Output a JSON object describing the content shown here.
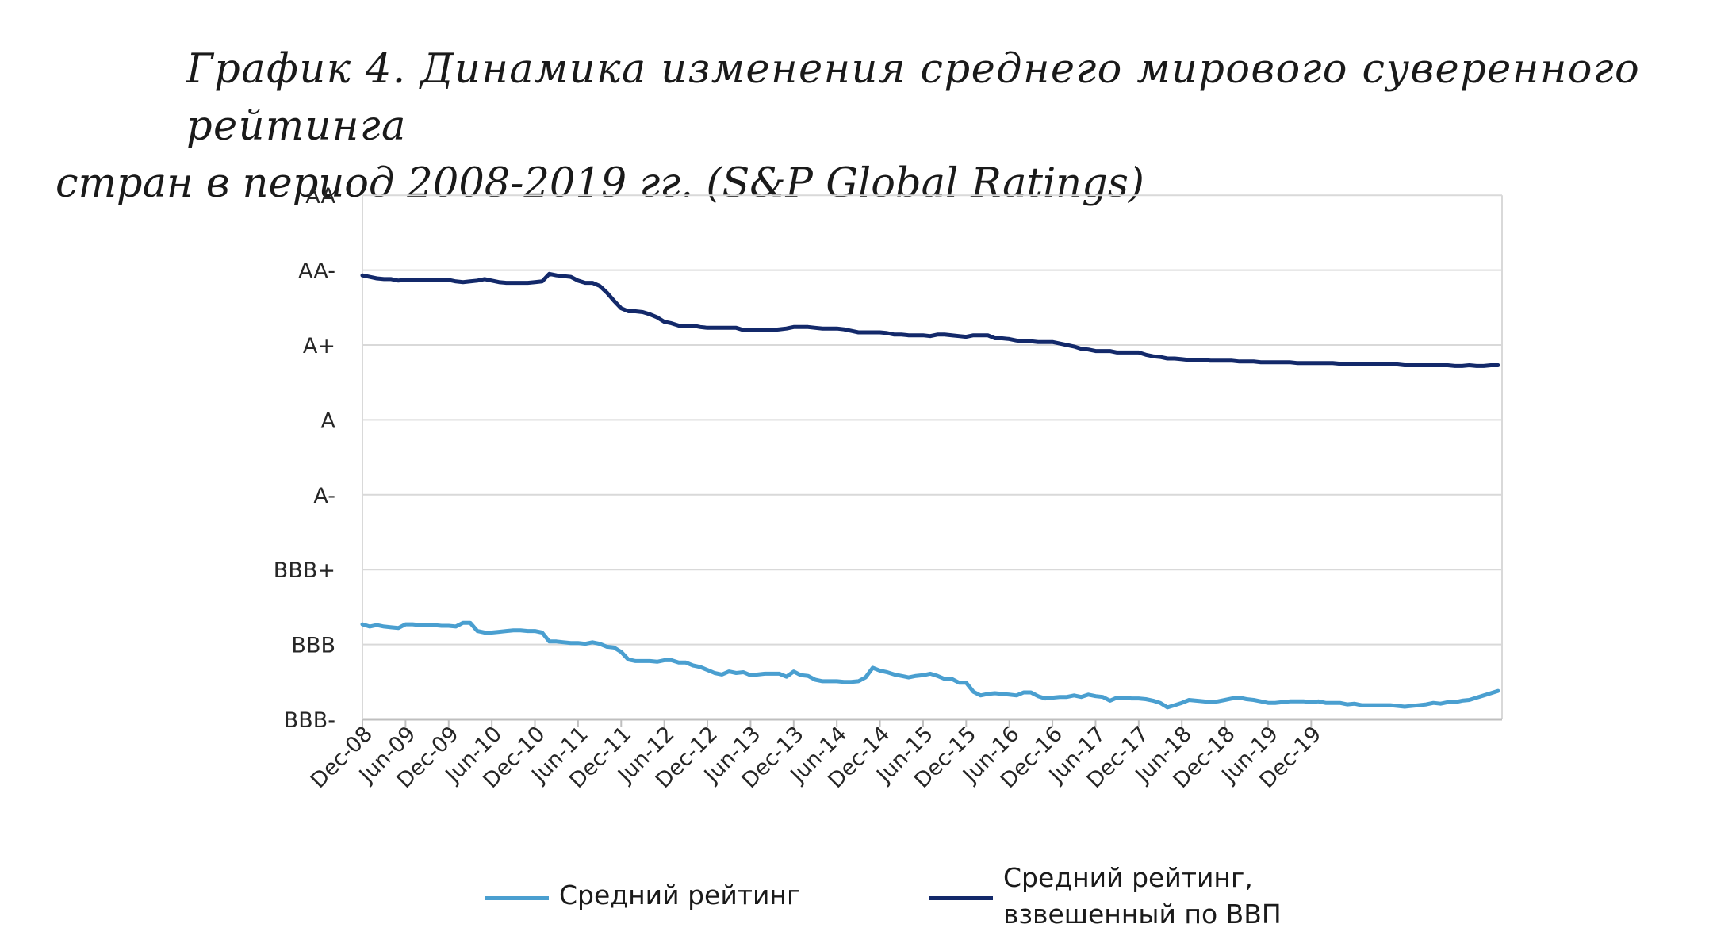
{
  "title": {
    "line1": "График 4. Динамика изменения среднего мирового суверенного рейтинга",
    "line2": "стран в период 2008-2019 гг. (S&P Global Ratings)"
  },
  "colors": {
    "avg": "#4a9fd0",
    "weighted": "#13296a",
    "grid": "#d9d9d9",
    "axis": "#bfbfbf"
  },
  "chart_data": {
    "type": "line",
    "title": "",
    "xlabel": "",
    "ylabel": "",
    "grid": true,
    "legend_position": "bottom",
    "y_ticks": [
      "BBB-",
      "BBB",
      "BBB+",
      "A-",
      "A",
      "A+",
      "AA-",
      "AA"
    ],
    "ylim": [
      0,
      7
    ],
    "x_tick_labels": [
      "Dec-08",
      "Jun-09",
      "Dec-09",
      "Jun-10",
      "Dec-10",
      "Jun-11",
      "Dec-11",
      "Jun-12",
      "Dec-12",
      "Jun-13",
      "Dec-13",
      "Jun-14",
      "Dec-14",
      "Jun-15",
      "Dec-15",
      "Jun-16",
      "Dec-16",
      "Jun-17",
      "Dec-17",
      "Jun-18",
      "Dec-18",
      "Jun-19",
      "Dec-19"
    ],
    "x_unit": "month index from Dec-08",
    "series": [
      {
        "name": "Средний рейтинг",
        "color_key": "avg",
        "points": [
          [
            0,
            1.27
          ],
          [
            1,
            1.24
          ],
          [
            2,
            1.26
          ],
          [
            3,
            1.24
          ],
          [
            4,
            1.23
          ],
          [
            5,
            1.22
          ],
          [
            6,
            1.27
          ],
          [
            7,
            1.27
          ],
          [
            8,
            1.26
          ],
          [
            9,
            1.26
          ],
          [
            10,
            1.26
          ],
          [
            11,
            1.25
          ],
          [
            12,
            1.25
          ],
          [
            13,
            1.24
          ],
          [
            14,
            1.29
          ],
          [
            15,
            1.29
          ],
          [
            16,
            1.18
          ],
          [
            17,
            1.16
          ],
          [
            18,
            1.16
          ],
          [
            19,
            1.17
          ],
          [
            20,
            1.18
          ],
          [
            21,
            1.19
          ],
          [
            22,
            1.19
          ],
          [
            23,
            1.18
          ],
          [
            24,
            1.18
          ],
          [
            25,
            1.16
          ],
          [
            26,
            1.04
          ],
          [
            27,
            1.04
          ],
          [
            28,
            1.03
          ],
          [
            29,
            1.02
          ],
          [
            30,
            1.02
          ],
          [
            31,
            1.01
          ],
          [
            32,
            1.03
          ],
          [
            33,
            1.01
          ],
          [
            34,
            0.97
          ],
          [
            35,
            0.96
          ],
          [
            36,
            0.9
          ],
          [
            37,
            0.8
          ],
          [
            38,
            0.78
          ],
          [
            39,
            0.78
          ],
          [
            40,
            0.78
          ],
          [
            41,
            0.77
          ],
          [
            42,
            0.79
          ],
          [
            43,
            0.79
          ],
          [
            44,
            0.76
          ],
          [
            45,
            0.76
          ],
          [
            46,
            0.72
          ],
          [
            47,
            0.7
          ],
          [
            48,
            0.66
          ],
          [
            49,
            0.62
          ],
          [
            50,
            0.6
          ],
          [
            51,
            0.64
          ],
          [
            52,
            0.62
          ],
          [
            53,
            0.63
          ],
          [
            54,
            0.59
          ],
          [
            55,
            0.6
          ],
          [
            56,
            0.61
          ],
          [
            57,
            0.61
          ],
          [
            58,
            0.61
          ],
          [
            59,
            0.57
          ],
          [
            60,
            0.64
          ],
          [
            61,
            0.59
          ],
          [
            62,
            0.58
          ],
          [
            63,
            0.53
          ],
          [
            64,
            0.51
          ],
          [
            65,
            0.51
          ],
          [
            66,
            0.51
          ],
          [
            67,
            0.5
          ],
          [
            68,
            0.5
          ],
          [
            69,
            0.51
          ],
          [
            70,
            0.56
          ],
          [
            71,
            0.69
          ],
          [
            72,
            0.65
          ],
          [
            73,
            0.63
          ],
          [
            74,
            0.6
          ],
          [
            75,
            0.58
          ],
          [
            76,
            0.56
          ],
          [
            77,
            0.58
          ],
          [
            78,
            0.59
          ],
          [
            79,
            0.61
          ],
          [
            80,
            0.58
          ],
          [
            81,
            0.54
          ],
          [
            82,
            0.54
          ],
          [
            83,
            0.49
          ],
          [
            84,
            0.49
          ],
          [
            85,
            0.37
          ],
          [
            86,
            0.32
          ],
          [
            87,
            0.34
          ],
          [
            88,
            0.35
          ],
          [
            89,
            0.34
          ],
          [
            90,
            0.33
          ],
          [
            91,
            0.32
          ],
          [
            92,
            0.36
          ],
          [
            93,
            0.36
          ],
          [
            94,
            0.31
          ],
          [
            95,
            0.28
          ],
          [
            96,
            0.29
          ],
          [
            97,
            0.3
          ],
          [
            98,
            0.3
          ],
          [
            99,
            0.32
          ],
          [
            100,
            0.3
          ],
          [
            101,
            0.33
          ],
          [
            102,
            0.31
          ],
          [
            103,
            0.3
          ],
          [
            104,
            0.25
          ],
          [
            105,
            0.29
          ],
          [
            106,
            0.29
          ],
          [
            107,
            0.28
          ],
          [
            108,
            0.28
          ],
          [
            109,
            0.27
          ],
          [
            110,
            0.25
          ],
          [
            111,
            0.22
          ],
          [
            112,
            0.16
          ],
          [
            113,
            0.19
          ],
          [
            114,
            0.22
          ],
          [
            115,
            0.26
          ],
          [
            116,
            0.25
          ],
          [
            117,
            0.24
          ],
          [
            118,
            0.23
          ],
          [
            119,
            0.24
          ],
          [
            120,
            0.26
          ],
          [
            121,
            0.28
          ],
          [
            122,
            0.29
          ],
          [
            123,
            0.27
          ],
          [
            124,
            0.26
          ],
          [
            125,
            0.24
          ],
          [
            126,
            0.22
          ],
          [
            127,
            0.22
          ],
          [
            128,
            0.23
          ],
          [
            129,
            0.24
          ],
          [
            130,
            0.24
          ],
          [
            131,
            0.24
          ],
          [
            132,
            0.23
          ],
          [
            133,
            0.24
          ],
          [
            134,
            0.22
          ],
          [
            135,
            0.22
          ],
          [
            136,
            0.22
          ],
          [
            137,
            0.2
          ],
          [
            138,
            0.21
          ],
          [
            139,
            0.19
          ],
          [
            140,
            0.19
          ],
          [
            141,
            0.19
          ],
          [
            142,
            0.19
          ],
          [
            143,
            0.19
          ],
          [
            144,
            0.18
          ],
          [
            145,
            0.17
          ],
          [
            146,
            0.18
          ],
          [
            147,
            0.19
          ],
          [
            148,
            0.2
          ],
          [
            149,
            0.22
          ],
          [
            150,
            0.21
          ],
          [
            151,
            0.23
          ],
          [
            152,
            0.23
          ],
          [
            153,
            0.25
          ],
          [
            154,
            0.26
          ],
          [
            155,
            0.29
          ],
          [
            156,
            0.32
          ],
          [
            157,
            0.35
          ],
          [
            158,
            0.38
          ]
        ]
      },
      {
        "name": "Средний рейтинг, взвешенный по ВВП",
        "color_key": "weighted",
        "points": [
          [
            0,
            5.93
          ],
          [
            1,
            5.91
          ],
          [
            2,
            5.89
          ],
          [
            3,
            5.88
          ],
          [
            4,
            5.88
          ],
          [
            5,
            5.86
          ],
          [
            6,
            5.87
          ],
          [
            7,
            5.87
          ],
          [
            8,
            5.87
          ],
          [
            9,
            5.87
          ],
          [
            10,
            5.87
          ],
          [
            11,
            5.87
          ],
          [
            12,
            5.87
          ],
          [
            13,
            5.85
          ],
          [
            14,
            5.84
          ],
          [
            15,
            5.85
          ],
          [
            16,
            5.86
          ],
          [
            17,
            5.88
          ],
          [
            18,
            5.86
          ],
          [
            19,
            5.84
          ],
          [
            20,
            5.83
          ],
          [
            21,
            5.83
          ],
          [
            22,
            5.83
          ],
          [
            23,
            5.83
          ],
          [
            24,
            5.84
          ],
          [
            25,
            5.85
          ],
          [
            26,
            5.95
          ],
          [
            27,
            5.93
          ],
          [
            28,
            5.92
          ],
          [
            29,
            5.91
          ],
          [
            30,
            5.86
          ],
          [
            31,
            5.83
          ],
          [
            32,
            5.83
          ],
          [
            33,
            5.79
          ],
          [
            34,
            5.7
          ],
          [
            35,
            5.59
          ],
          [
            36,
            5.49
          ],
          [
            37,
            5.45
          ],
          [
            38,
            5.45
          ],
          [
            39,
            5.44
          ],
          [
            40,
            5.41
          ],
          [
            41,
            5.37
          ],
          [
            42,
            5.31
          ],
          [
            43,
            5.29
          ],
          [
            44,
            5.26
          ],
          [
            45,
            5.26
          ],
          [
            46,
            5.26
          ],
          [
            47,
            5.24
          ],
          [
            48,
            5.23
          ],
          [
            49,
            5.23
          ],
          [
            50,
            5.23
          ],
          [
            51,
            5.23
          ],
          [
            52,
            5.23
          ],
          [
            53,
            5.2
          ],
          [
            54,
            5.2
          ],
          [
            55,
            5.2
          ],
          [
            56,
            5.2
          ],
          [
            57,
            5.2
          ],
          [
            58,
            5.21
          ],
          [
            59,
            5.22
          ],
          [
            60,
            5.24
          ],
          [
            61,
            5.24
          ],
          [
            62,
            5.24
          ],
          [
            63,
            5.23
          ],
          [
            64,
            5.22
          ],
          [
            65,
            5.22
          ],
          [
            66,
            5.22
          ],
          [
            67,
            5.21
          ],
          [
            68,
            5.19
          ],
          [
            69,
            5.17
          ],
          [
            70,
            5.17
          ],
          [
            71,
            5.17
          ],
          [
            72,
            5.17
          ],
          [
            73,
            5.16
          ],
          [
            74,
            5.14
          ],
          [
            75,
            5.14
          ],
          [
            76,
            5.13
          ],
          [
            77,
            5.13
          ],
          [
            78,
            5.13
          ],
          [
            79,
            5.12
          ],
          [
            80,
            5.14
          ],
          [
            81,
            5.14
          ],
          [
            82,
            5.13
          ],
          [
            83,
            5.12
          ],
          [
            84,
            5.11
          ],
          [
            85,
            5.13
          ],
          [
            86,
            5.13
          ],
          [
            87,
            5.13
          ],
          [
            88,
            5.09
          ],
          [
            89,
            5.09
          ],
          [
            90,
            5.08
          ],
          [
            91,
            5.06
          ],
          [
            92,
            5.05
          ],
          [
            93,
            5.05
          ],
          [
            94,
            5.04
          ],
          [
            95,
            5.04
          ],
          [
            96,
            5.04
          ],
          [
            97,
            5.02
          ],
          [
            98,
            5.0
          ],
          [
            99,
            4.98
          ],
          [
            100,
            4.95
          ],
          [
            101,
            4.94
          ],
          [
            102,
            4.92
          ],
          [
            103,
            4.92
          ],
          [
            104,
            4.92
          ],
          [
            105,
            4.9
          ],
          [
            106,
            4.9
          ],
          [
            107,
            4.9
          ],
          [
            108,
            4.9
          ],
          [
            109,
            4.87
          ],
          [
            110,
            4.85
          ],
          [
            111,
            4.84
          ],
          [
            112,
            4.82
          ],
          [
            113,
            4.82
          ],
          [
            114,
            4.81
          ],
          [
            115,
            4.8
          ],
          [
            116,
            4.8
          ],
          [
            117,
            4.8
          ],
          [
            118,
            4.79
          ],
          [
            119,
            4.79
          ],
          [
            120,
            4.79
          ],
          [
            121,
            4.79
          ],
          [
            122,
            4.78
          ],
          [
            123,
            4.78
          ],
          [
            124,
            4.78
          ],
          [
            125,
            4.77
          ],
          [
            126,
            4.77
          ],
          [
            127,
            4.77
          ],
          [
            128,
            4.77
          ],
          [
            129,
            4.77
          ],
          [
            130,
            4.76
          ],
          [
            131,
            4.76
          ],
          [
            132,
            4.76
          ],
          [
            133,
            4.76
          ],
          [
            134,
            4.76
          ],
          [
            135,
            4.76
          ],
          [
            136,
            4.75
          ],
          [
            137,
            4.75
          ],
          [
            138,
            4.74
          ],
          [
            139,
            4.74
          ],
          [
            140,
            4.74
          ],
          [
            141,
            4.74
          ],
          [
            142,
            4.74
          ],
          [
            143,
            4.74
          ],
          [
            144,
            4.74
          ],
          [
            145,
            4.73
          ],
          [
            146,
            4.73
          ],
          [
            147,
            4.73
          ],
          [
            148,
            4.73
          ],
          [
            149,
            4.73
          ],
          [
            150,
            4.73
          ],
          [
            151,
            4.73
          ],
          [
            152,
            4.72
          ],
          [
            153,
            4.72
          ],
          [
            154,
            4.73
          ],
          [
            155,
            4.72
          ],
          [
            156,
            4.72
          ],
          [
            157,
            4.73
          ],
          [
            158,
            4.73
          ]
        ]
      }
    ]
  },
  "legend": {
    "avg_label": "Средний рейтинг",
    "weighted_line1": "Средний рейтинг,",
    "weighted_line2": "взвешенный по ВВП"
  }
}
